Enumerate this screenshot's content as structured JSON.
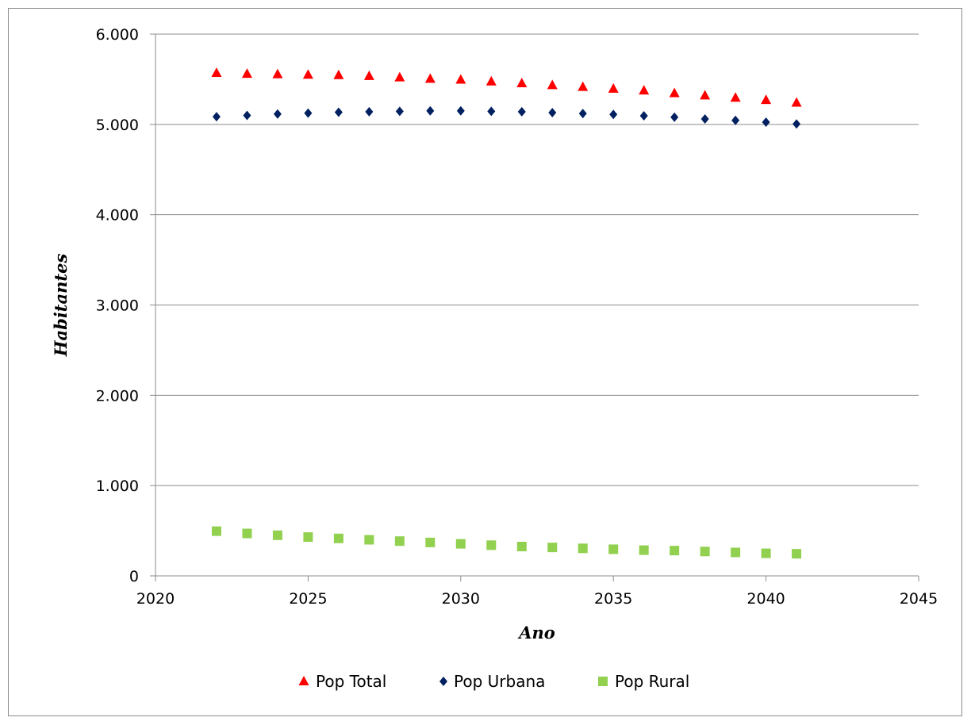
{
  "chart_data": {
    "type": "scatter",
    "title": "",
    "xlabel": "Ano",
    "ylabel": "Habitantes",
    "xlim": [
      2020,
      2045
    ],
    "ylim": [
      0,
      6000
    ],
    "x_ticks": [
      2020,
      2025,
      2030,
      2035,
      2040,
      2045
    ],
    "y_ticks": [
      0,
      1000,
      2000,
      3000,
      4000,
      5000,
      6000
    ],
    "x_tick_labels": [
      "2020",
      "2025",
      "2030",
      "2035",
      "2040",
      "2045"
    ],
    "y_tick_labels": [
      "0",
      "1.000",
      "2.000",
      "3.000",
      "4.000",
      "5.000",
      "6.000"
    ],
    "grid": true,
    "legend_position": "bottom",
    "x": [
      2022,
      2023,
      2024,
      2025,
      2026,
      2027,
      2028,
      2029,
      2030,
      2031,
      2032,
      2033,
      2034,
      2035,
      2036,
      2037,
      2038,
      2039,
      2040,
      2041
    ],
    "series": [
      {
        "name": "Pop Total",
        "marker": "triangle",
        "color": "#ff0000",
        "values": [
          5570,
          5560,
          5555,
          5550,
          5545,
          5535,
          5520,
          5505,
          5495,
          5475,
          5455,
          5435,
          5415,
          5395,
          5375,
          5345,
          5320,
          5295,
          5270,
          5240
        ]
      },
      {
        "name": "Pop Urbana",
        "marker": "diamond",
        "color": "#002060",
        "values": [
          5085,
          5100,
          5115,
          5125,
          5135,
          5140,
          5145,
          5150,
          5150,
          5145,
          5140,
          5130,
          5120,
          5110,
          5095,
          5080,
          5060,
          5045,
          5025,
          5005
        ]
      },
      {
        "name": "Pop Rural",
        "marker": "square",
        "color": "#92d050",
        "values": [
          495,
          470,
          450,
          430,
          415,
          400,
          385,
          370,
          355,
          340,
          325,
          315,
          305,
          295,
          285,
          280,
          270,
          260,
          250,
          245
        ]
      }
    ]
  }
}
